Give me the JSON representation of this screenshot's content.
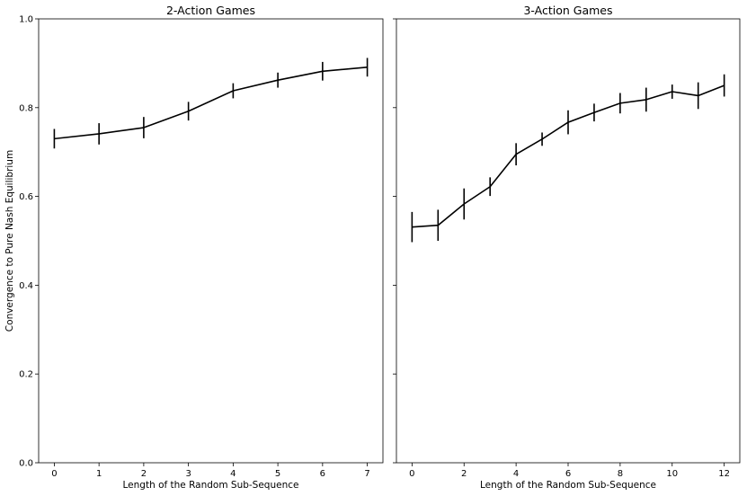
{
  "chart_data": [
    {
      "type": "line",
      "title": "2-Action Games",
      "xlabel": "Length of the Random Sub-Sequence",
      "ylabel": "Convergence to Pure Nash Equilibrium",
      "xlim": [
        -0.35,
        7.35
      ],
      "ylim": [
        0,
        1.0
      ],
      "xticks": [
        0,
        1,
        2,
        3,
        4,
        5,
        6,
        7
      ],
      "xtick_labels": [
        "0",
        "1",
        "2",
        "3",
        "4",
        "5",
        "6",
        "7"
      ],
      "yticks": [
        0.0,
        0.2,
        0.4,
        0.6,
        0.8,
        1.0
      ],
      "ytick_labels": [
        "0.0",
        "0.2",
        "0.4",
        "0.6",
        "0.8",
        "1.0"
      ],
      "grid": false,
      "color": "#000000",
      "series": [
        {
          "x": [
            0,
            1,
            2,
            3,
            4,
            5,
            6,
            7
          ],
          "y": [
            0.73,
            0.741,
            0.755,
            0.792,
            0.838,
            0.862,
            0.882,
            0.891
          ],
          "err": [
            0.022,
            0.024,
            0.024,
            0.021,
            0.017,
            0.017,
            0.021,
            0.021
          ]
        }
      ]
    },
    {
      "type": "line",
      "title": "3-Action Games",
      "xlabel": "Length of the Random Sub-Sequence",
      "ylabel": "",
      "xlim": [
        -0.6,
        12.6
      ],
      "ylim": [
        0,
        1.0
      ],
      "xticks": [
        0,
        2,
        4,
        6,
        8,
        10,
        12
      ],
      "xtick_labels": [
        "0",
        "2",
        "4",
        "6",
        "8",
        "10",
        "12"
      ],
      "yticks": [
        0.0,
        0.2,
        0.4,
        0.6,
        0.8,
        1.0
      ],
      "ytick_labels": [],
      "grid": false,
      "color": "#000000",
      "series": [
        {
          "x": [
            0,
            1,
            2,
            3,
            4,
            5,
            6,
            7,
            8,
            9,
            10,
            11,
            12
          ],
          "y": [
            0.531,
            0.535,
            0.583,
            0.622,
            0.695,
            0.729,
            0.767,
            0.789,
            0.81,
            0.818,
            0.836,
            0.827,
            0.85
          ],
          "err": [
            0.034,
            0.035,
            0.035,
            0.021,
            0.025,
            0.015,
            0.027,
            0.02,
            0.023,
            0.027,
            0.016,
            0.03,
            0.025
          ]
        }
      ]
    }
  ]
}
